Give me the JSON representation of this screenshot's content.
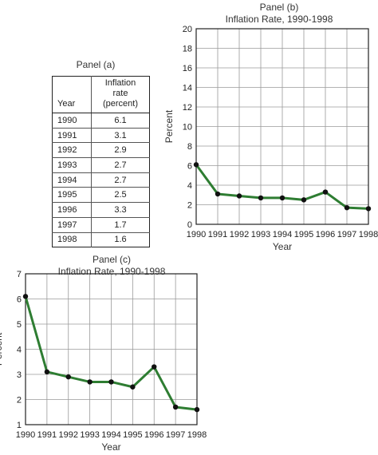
{
  "panel_a": {
    "title": "Panel (a)",
    "headers": {
      "year": "Year",
      "rate": "Inflation rate\n(percent)"
    },
    "rows": [
      {
        "year": "1990",
        "rate": "6.1"
      },
      {
        "year": "1991",
        "rate": "3.1"
      },
      {
        "year": "1992",
        "rate": "2.9"
      },
      {
        "year": "1993",
        "rate": "2.7"
      },
      {
        "year": "1994",
        "rate": "2.7"
      },
      {
        "year": "1995",
        "rate": "2.5"
      },
      {
        "year": "1996",
        "rate": "3.3"
      },
      {
        "year": "1997",
        "rate": "1.7"
      },
      {
        "year": "1998",
        "rate": "1.6"
      }
    ]
  },
  "chart_data": [
    {
      "type": "line",
      "panel_label": "Panel (b)",
      "title": "Inflation Rate, 1990-1998",
      "xlabel": "Year",
      "ylabel": "Percent",
      "x": [
        "1990",
        "1991",
        "1992",
        "1993",
        "1994",
        "1995",
        "1996",
        "1997",
        "1998"
      ],
      "y": [
        6.1,
        3.1,
        2.9,
        2.7,
        2.7,
        2.5,
        3.3,
        1.7,
        1.6
      ],
      "ylim": [
        0,
        20
      ],
      "yticks": [
        0,
        2,
        4,
        6,
        8,
        10,
        12,
        14,
        16,
        18,
        20
      ],
      "grid": true,
      "line_color": "#2e7d32",
      "marker_color": "#111111"
    },
    {
      "type": "line",
      "panel_label": "Panel (c)",
      "title": "Inflation Rate, 1990-1998",
      "xlabel": "Year",
      "ylabel": "Percent",
      "x": [
        "1990",
        "1991",
        "1992",
        "1993",
        "1994",
        "1995",
        "1996",
        "1997",
        "1998"
      ],
      "y": [
        6.1,
        3.1,
        2.9,
        2.7,
        2.7,
        2.5,
        3.3,
        1.7,
        1.6
      ],
      "ylim": [
        1,
        7
      ],
      "yticks": [
        1,
        2,
        3,
        4,
        5,
        6,
        7
      ],
      "grid": true,
      "line_color": "#2e7d32",
      "marker_color": "#111111"
    }
  ]
}
